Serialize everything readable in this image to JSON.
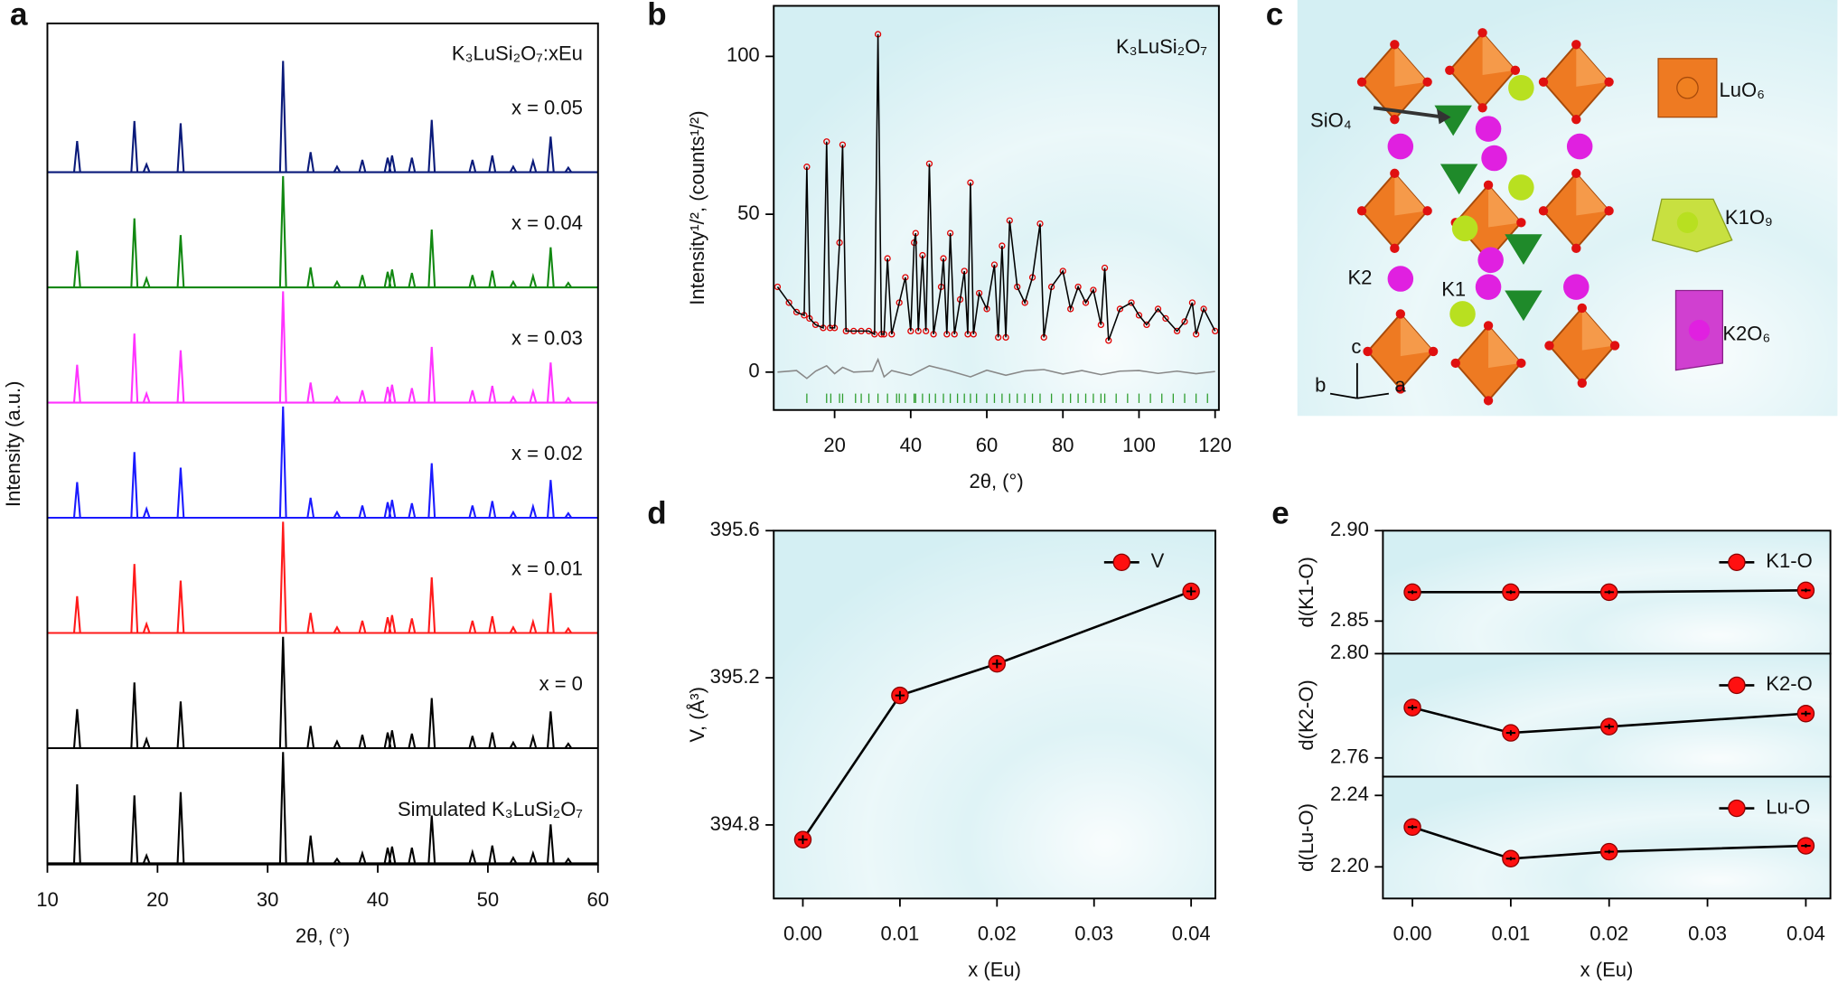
{
  "panel_labels": [
    "a",
    "b",
    "c",
    "d",
    "e"
  ],
  "structure": {
    "labels": [
      "SiO₄",
      "LuO₆",
      "K1O₉",
      "K2O₆",
      "K2",
      "K1",
      "c",
      "b",
      "a"
    ]
  },
  "chart_data": [
    {
      "type": "stack",
      "annotation": "K₃LuSi₂O₇:xEu",
      "xlabel": "2θ, (°)",
      "ylabel": "Intensity (a.u.)",
      "xlim": [
        10,
        60
      ],
      "xticks": [
        10,
        20,
        30,
        40,
        50,
        60
      ],
      "x": [
        12.7,
        17.9,
        19.0,
        22.1,
        31.4,
        33.9,
        36.3,
        38.6,
        40.9,
        41.3,
        43.1,
        44.9,
        48.6,
        50.4,
        52.3,
        54.1,
        55.7,
        57.3
      ],
      "series": [
        {
          "name": "x = 0.05",
          "color": "#0a1a7a",
          "values": [
            28,
            46,
            7,
            44,
            100,
            18,
            5,
            11,
            13,
            15,
            13,
            47,
            11,
            15,
            5,
            10,
            32,
            4
          ]
        },
        {
          "name": "x = 0.04",
          "color": "#118811",
          "values": [
            33,
            62,
            8,
            47,
            100,
            18,
            5,
            11,
            14,
            16,
            13,
            52,
            11,
            15,
            5,
            10,
            36,
            4
          ]
        },
        {
          "name": "x = 0.03",
          "color": "#ff33ff",
          "values": [
            34,
            62,
            8,
            47,
            100,
            18,
            5,
            11,
            14,
            16,
            13,
            50,
            11,
            15,
            5,
            10,
            36,
            4
          ]
        },
        {
          "name": "x = 0.02",
          "color": "#1a1aff",
          "values": [
            32,
            59,
            8,
            45,
            100,
            18,
            5,
            11,
            14,
            16,
            13,
            49,
            11,
            15,
            5,
            10,
            34,
            4
          ]
        },
        {
          "name": "x = 0.01",
          "color": "#ff1a1a",
          "values": [
            33,
            62,
            8,
            47,
            100,
            18,
            5,
            11,
            14,
            16,
            13,
            50,
            11,
            15,
            5,
            10,
            36,
            4
          ]
        },
        {
          "name": "x = 0",
          "color": "#000000",
          "values": [
            35,
            59,
            8,
            42,
            100,
            20,
            6,
            12,
            14,
            16,
            13,
            45,
            11,
            14,
            5,
            10,
            33,
            4
          ]
        },
        {
          "name": "Simulated K₃LuSi₂O₇",
          "color": "#000000",
          "values": [
            71,
            61,
            7,
            64,
            100,
            25,
            4,
            9,
            14,
            15,
            14,
            43,
            10,
            16,
            5,
            9,
            35,
            4
          ]
        }
      ]
    },
    {
      "type": "profile",
      "annotation": "K₃LuSi₂O₇",
      "xlabel": "2θ, (°)",
      "ylabel": "Intensity¹/², (counts¹/²)",
      "background": "#d4eff3",
      "xlim": [
        4,
        121
      ],
      "xticks": [
        20,
        40,
        60,
        80,
        100,
        120
      ],
      "ylim": [
        -12,
        116
      ],
      "yticks": [
        0,
        50,
        100
      ],
      "x": [
        5,
        8,
        10,
        12,
        12.7,
        13.4,
        15,
        17,
        17.9,
        18.8,
        20,
        21.3,
        22.1,
        23,
        25,
        27,
        29,
        30.5,
        31.4,
        32.3,
        33,
        33.9,
        35,
        37,
        38.6,
        40,
        40.9,
        41.3,
        42,
        43.1,
        44,
        44.9,
        46,
        48,
        48.6,
        49.5,
        50.4,
        51.5,
        53,
        54.1,
        55,
        55.7,
        56.5,
        58,
        60,
        62,
        63,
        64,
        65,
        66,
        68,
        70,
        72,
        74,
        75,
        77,
        80,
        82,
        84,
        86,
        88,
        90,
        91,
        92,
        95,
        98,
        100,
        102,
        105,
        107,
        110,
        112,
        114,
        115,
        117,
        120
      ],
      "series": [
        {
          "color": "#e00000",
          "marker": "circle",
          "values": [
            27,
            22,
            19,
            18,
            65,
            17,
            15,
            14,
            73,
            14,
            14,
            41,
            72,
            13,
            13,
            13,
            13,
            12,
            107,
            12,
            12,
            36,
            12,
            22,
            30,
            13,
            41,
            44,
            13,
            37,
            13,
            66,
            12,
            27,
            36,
            12,
            44,
            12,
            23,
            32,
            12,
            60,
            12,
            25,
            20,
            34,
            11,
            40,
            11,
            48,
            27,
            22,
            30,
            47,
            11,
            27,
            32,
            20,
            27,
            22,
            26,
            15,
            33,
            10,
            20,
            22,
            18,
            15,
            20,
            17,
            13,
            16,
            22,
            12,
            20,
            13
          ]
        },
        {
          "color": "#000000",
          "marker": "line",
          "values": [
            27,
            22,
            19,
            18,
            65,
            17,
            15,
            14,
            73,
            14,
            14,
            41,
            72,
            13,
            13,
            13,
            13,
            12,
            107,
            12,
            12,
            36,
            12,
            22,
            30,
            13,
            41,
            44,
            13,
            37,
            13,
            66,
            12,
            27,
            36,
            12,
            44,
            12,
            23,
            32,
            12,
            60,
            12,
            25,
            20,
            34,
            11,
            40,
            11,
            48,
            27,
            22,
            30,
            47,
            11,
            27,
            32,
            20,
            27,
            22,
            26,
            15,
            33,
            10,
            20,
            22,
            18,
            15,
            20,
            17,
            13,
            16,
            22,
            12,
            20,
            13
          ]
        },
        {
          "color": "#888888",
          "marker": "line",
          "x": [
            5,
            10,
            12.7,
            15,
            17.9,
            20,
            22.1,
            25,
            30,
            31.4,
            33,
            35,
            40,
            44.9,
            50,
            55.7,
            60,
            65,
            70,
            75,
            80,
            85,
            90,
            95,
            100,
            105,
            110,
            115,
            120
          ],
          "values": [
            0,
            0.5,
            -2,
            0.3,
            2,
            -0.5,
            1.5,
            0,
            0.3,
            4,
            -1.5,
            0.5,
            -1,
            2,
            0.5,
            -1.5,
            0.6,
            -1,
            0.4,
            0.8,
            -0.6,
            0.5,
            -0.8,
            0.3,
            0.5,
            -0.4,
            0.3,
            -0.5,
            0.2
          ]
        }
      ],
      "bragg": {
        "color": "#2e9e2e",
        "x": [
          12.7,
          17.9,
          19,
          21.3,
          22.1,
          25.5,
          27,
          29,
          31.4,
          33.9,
          36.3,
          37,
          38.6,
          40.9,
          41.3,
          43.1,
          44.9,
          46.5,
          48.6,
          50.4,
          52.3,
          54.1,
          55.7,
          57.3,
          60,
          62,
          64,
          66,
          68,
          70,
          72,
          74,
          77,
          80,
          82,
          84,
          86,
          88,
          90,
          91,
          94,
          97,
          100,
          103,
          106,
          109,
          112,
          115,
          118
        ]
      }
    },
    {
      "type": "line",
      "xlabel": "x (Eu)",
      "ylabel": "V, (Å³)",
      "background": "#d4eff3",
      "legend": "upper right",
      "x": [
        0,
        0.01,
        0.02,
        0.04
      ],
      "xlim": [
        -0.003,
        0.0425
      ],
      "xticks": [
        {
          "value": 0,
          "label": "0.00"
        },
        0.01,
        0.02,
        0.03,
        0.04
      ],
      "ylim": [
        394.6,
        395.6
      ],
      "yticks": [
        394.8,
        395.2,
        395.6
      ],
      "series": [
        {
          "name": "V",
          "color": "#ff1010",
          "values": [
            394.76,
            395.152,
            395.238,
            395.435
          ],
          "errors": [
            0.012,
            0.012,
            0.012,
            0.012
          ]
        }
      ]
    },
    {
      "type": "line",
      "ylabel": "d(K1-O)",
      "background": "#d4eff3",
      "legend": "upper right",
      "x": [
        0,
        0.01,
        0.02,
        0.04
      ],
      "xlim": [
        -0.003,
        0.0425
      ],
      "ylim": [
        2.832,
        2.9
      ],
      "yticks": [
        2.85,
        {
          "value": 2.9,
          "label": "2.90"
        }
      ],
      "series": [
        {
          "name": "K1-O",
          "color": "#ff1010",
          "values": [
            2.866,
            2.866,
            2.866,
            2.867
          ],
          "errors": [
            0.001,
            0.001,
            0.001,
            0.001
          ]
        }
      ]
    },
    {
      "type": "line",
      "ylabel": "d(K2-O)",
      "background": "#d4eff3",
      "legend": "upper right",
      "x": [
        0,
        0.01,
        0.02,
        0.04
      ],
      "xlim": [
        -0.003,
        0.0425
      ],
      "ylim": [
        2.7528,
        2.8
      ],
      "yticks": [
        2.76,
        {
          "value": 2.8,
          "label": "2.80"
        }
      ],
      "series": [
        {
          "name": "K2-O",
          "color": "#ff1010",
          "values": [
            2.7793,
            2.7696,
            2.772,
            2.777
          ],
          "errors": [
            0.001,
            0.001,
            0.001,
            0.001
          ]
        }
      ]
    },
    {
      "type": "line",
      "xlabel": "x (Eu)",
      "ylabel": "d(Lu-O)",
      "background": "#d4eff3",
      "legend": "upper right",
      "x": [
        0,
        0.01,
        0.02,
        0.04
      ],
      "xlim": [
        -0.003,
        0.0425
      ],
      "xticks": [
        {
          "value": 0,
          "label": "0.00"
        },
        0.01,
        0.02,
        0.03,
        0.04
      ],
      "ylim": [
        2.1823,
        2.2505
      ],
      "yticks": [
        {
          "value": 2.2,
          "label": "2.20"
        },
        2.24
      ],
      "series": [
        {
          "name": "Lu-O",
          "color": "#ff1010",
          "values": [
            2.2223,
            2.2046,
            2.2085,
            2.2118
          ],
          "errors": [
            0.001,
            0.001,
            0.001,
            0.001
          ]
        }
      ]
    }
  ]
}
